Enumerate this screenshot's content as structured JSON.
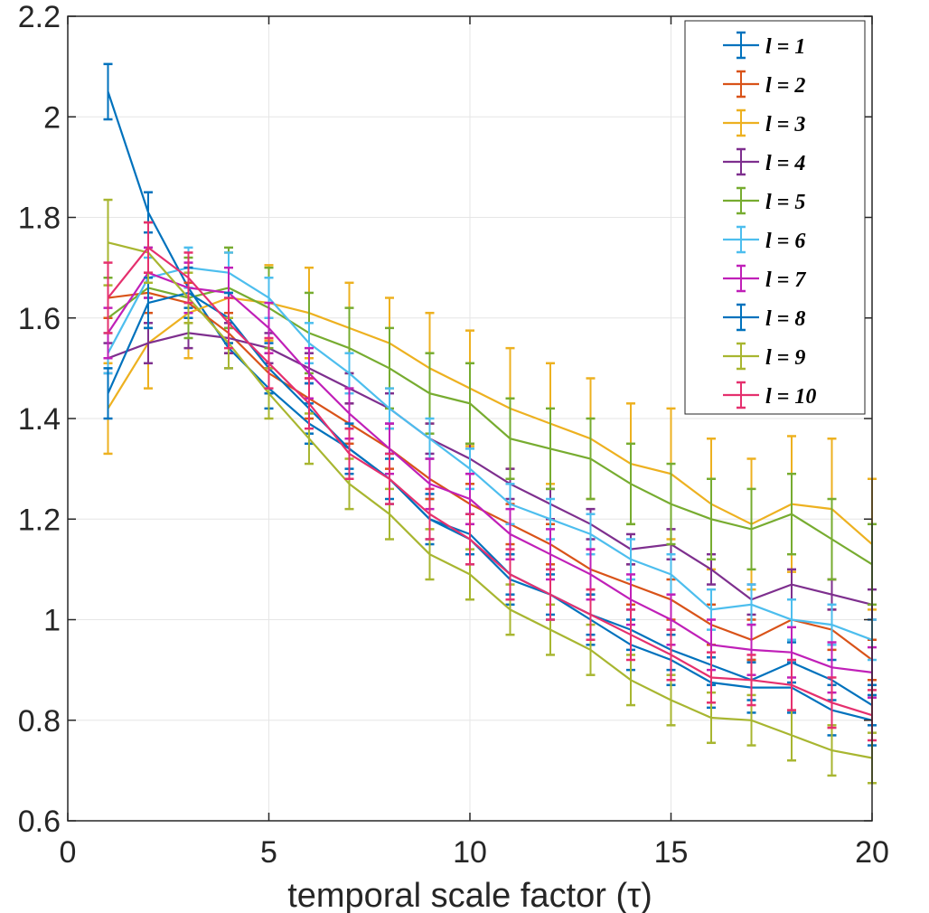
{
  "chart_data": {
    "type": "line",
    "xlabel": "temporal scale factor (τ)",
    "ylabel": "",
    "xlim": [
      0,
      20
    ],
    "ylim": [
      0.6,
      2.2
    ],
    "xticks": [
      "0",
      "5",
      "10",
      "15",
      "20"
    ],
    "yticks": [
      "0.6",
      "0.8",
      "1",
      "1.2",
      "1.4",
      "1.6",
      "1.8",
      "2",
      "2.2"
    ],
    "grid": true,
    "legend_position": "top-right",
    "x": [
      1,
      2,
      3,
      4,
      5,
      6,
      7,
      8,
      9,
      10,
      11,
      12,
      13,
      14,
      15,
      16,
      17,
      18,
      19,
      20
    ],
    "series": [
      {
        "name": "l = 1",
        "color": "#0072BD",
        "values": [
          2.05,
          1.81,
          1.66,
          1.54,
          1.46,
          1.39,
          1.34,
          1.28,
          1.2,
          1.17,
          1.09,
          1.05,
          1.01,
          0.98,
          0.94,
          0.91,
          0.88,
          0.915,
          0.88,
          0.83
        ],
        "errors": [
          0.055,
          0.04,
          0.04,
          0.04,
          0.04,
          0.04,
          0.04,
          0.04,
          0.04,
          0.04,
          0.04,
          0.04,
          0.04,
          0.04,
          0.04,
          0.04,
          0.04,
          0.04,
          0.04,
          0.04
        ]
      },
      {
        "name": "l = 2",
        "color": "#D95319",
        "values": [
          1.64,
          1.65,
          1.63,
          1.57,
          1.49,
          1.44,
          1.39,
          1.34,
          1.28,
          1.23,
          1.19,
          1.15,
          1.1,
          1.07,
          1.04,
          0.99,
          0.96,
          1.0,
          0.98,
          0.92
        ],
        "errors": [
          0.04,
          0.04,
          0.04,
          0.04,
          0.04,
          0.04,
          0.04,
          0.04,
          0.04,
          0.04,
          0.04,
          0.04,
          0.04,
          0.04,
          0.04,
          0.04,
          0.04,
          0.04,
          0.04,
          0.04
        ]
      },
      {
        "name": "l = 3",
        "color": "#EDB120",
        "values": [
          1.42,
          1.55,
          1.61,
          1.64,
          1.63,
          1.61,
          1.58,
          1.55,
          1.5,
          1.46,
          1.42,
          1.39,
          1.36,
          1.31,
          1.29,
          1.23,
          1.19,
          1.23,
          1.22,
          1.15
        ],
        "errors": [
          0.09,
          0.09,
          0.09,
          0.09,
          0.075,
          0.09,
          0.09,
          0.09,
          0.11,
          0.115,
          0.12,
          0.12,
          0.12,
          0.12,
          0.13,
          0.13,
          0.13,
          0.135,
          0.14,
          0.13
        ]
      },
      {
        "name": "l = 4",
        "color": "#7E2F8E",
        "values": [
          1.52,
          1.55,
          1.57,
          1.56,
          1.54,
          1.5,
          1.46,
          1.42,
          1.36,
          1.32,
          1.27,
          1.23,
          1.19,
          1.14,
          1.15,
          1.1,
          1.04,
          1.07,
          1.05,
          1.03
        ],
        "errors": [
          0.03,
          0.04,
          0.03,
          0.03,
          0.03,
          0.03,
          0.03,
          0.03,
          0.03,
          0.03,
          0.03,
          0.03,
          0.03,
          0.03,
          0.03,
          0.03,
          0.03,
          0.03,
          0.03,
          0.03
        ]
      },
      {
        "name": "l = 5",
        "color": "#77AC30",
        "values": [
          1.6,
          1.66,
          1.64,
          1.66,
          1.62,
          1.57,
          1.54,
          1.5,
          1.45,
          1.43,
          1.36,
          1.34,
          1.32,
          1.27,
          1.23,
          1.2,
          1.18,
          1.21,
          1.16,
          1.11
        ],
        "errors": [
          0.08,
          0.08,
          0.08,
          0.08,
          0.08,
          0.08,
          0.08,
          0.08,
          0.08,
          0.08,
          0.08,
          0.08,
          0.08,
          0.08,
          0.08,
          0.08,
          0.08,
          0.08,
          0.08,
          0.08
        ]
      },
      {
        "name": "l = 6",
        "color": "#4DBEEE",
        "values": [
          1.53,
          1.68,
          1.7,
          1.69,
          1.64,
          1.55,
          1.49,
          1.42,
          1.36,
          1.3,
          1.23,
          1.2,
          1.17,
          1.12,
          1.09,
          1.02,
          1.03,
          1.0,
          0.99,
          0.96
        ],
        "errors": [
          0.04,
          0.04,
          0.04,
          0.04,
          0.04,
          0.04,
          0.04,
          0.04,
          0.04,
          0.04,
          0.04,
          0.04,
          0.04,
          0.04,
          0.04,
          0.04,
          0.04,
          0.04,
          0.04,
          0.04
        ]
      },
      {
        "name": "l = 7",
        "color": "#C020B8",
        "values": [
          1.57,
          1.69,
          1.66,
          1.65,
          1.58,
          1.49,
          1.41,
          1.34,
          1.27,
          1.24,
          1.17,
          1.13,
          1.09,
          1.04,
          1.0,
          0.95,
          0.94,
          0.935,
          0.905,
          0.895
        ],
        "errors": [
          0.05,
          0.05,
          0.05,
          0.05,
          0.05,
          0.05,
          0.05,
          0.05,
          0.05,
          0.05,
          0.05,
          0.05,
          0.05,
          0.05,
          0.05,
          0.05,
          0.05,
          0.05,
          0.05,
          0.05
        ]
      },
      {
        "name": "l = 8",
        "color": "#0072BD",
        "values": [
          1.45,
          1.63,
          1.65,
          1.6,
          1.5,
          1.42,
          1.34,
          1.28,
          1.2,
          1.16,
          1.08,
          1.05,
          1.0,
          0.95,
          0.92,
          0.875,
          0.865,
          0.865,
          0.82,
          0.8
        ],
        "errors": [
          0.05,
          0.05,
          0.05,
          0.05,
          0.05,
          0.05,
          0.05,
          0.05,
          0.05,
          0.05,
          0.05,
          0.05,
          0.05,
          0.05,
          0.05,
          0.05,
          0.05,
          0.05,
          0.05,
          0.05
        ]
      },
      {
        "name": "l = 9",
        "color": "#A8B630",
        "values": [
          1.75,
          1.73,
          1.64,
          1.55,
          1.45,
          1.36,
          1.27,
          1.21,
          1.13,
          1.09,
          1.02,
          0.98,
          0.94,
          0.88,
          0.84,
          0.805,
          0.8,
          0.77,
          0.74,
          0.725
        ],
        "errors": [
          0.085,
          0.06,
          0.05,
          0.05,
          0.05,
          0.05,
          0.05,
          0.05,
          0.05,
          0.05,
          0.05,
          0.05,
          0.05,
          0.05,
          0.05,
          0.05,
          0.05,
          0.05,
          0.05,
          0.05
        ]
      },
      {
        "name": "l = 10",
        "color": "#E5306E",
        "values": [
          1.64,
          1.74,
          1.68,
          1.59,
          1.51,
          1.43,
          1.33,
          1.28,
          1.21,
          1.16,
          1.09,
          1.05,
          1.01,
          0.97,
          0.93,
          0.885,
          0.88,
          0.87,
          0.835,
          0.81
        ],
        "errors": [
          0.07,
          0.05,
          0.05,
          0.05,
          0.05,
          0.05,
          0.05,
          0.05,
          0.05,
          0.05,
          0.05,
          0.05,
          0.05,
          0.05,
          0.05,
          0.05,
          0.05,
          0.05,
          0.05,
          0.05
        ]
      }
    ]
  }
}
